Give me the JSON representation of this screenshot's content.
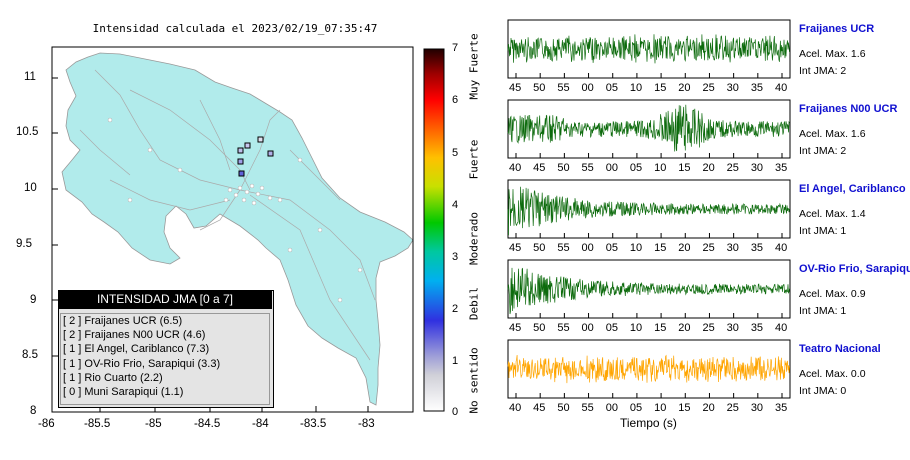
{
  "map": {
    "title": "Intensidad calculada el 2023/02/19_07:35:47",
    "y_ticks": [
      "11",
      "10.5",
      "10",
      "9.5",
      "9",
      "8.5",
      "8"
    ],
    "x_ticks": [
      "-86",
      "-85.5",
      "-85",
      "-84.5",
      "-84",
      "-83.5",
      "-83"
    ],
    "land_color": "#b1ebeb",
    "sea_color": "#ffffff"
  },
  "colorbar": {
    "labels": [
      "7",
      "6",
      "5",
      "4",
      "3",
      "2",
      "1",
      "0"
    ],
    "descriptions": [
      "Muy Fuerte",
      "Fuerte",
      "Moderado",
      "Debil",
      "No sentido"
    ]
  },
  "legend": {
    "title": "INTENSIDAD JMA [0 a 7]",
    "items": [
      "[ 2 ]  Fraijanes UCR (6.5)",
      "[ 2 ]  Fraijanes N00 UCR (4.6)",
      "[ 1 ]  El Angel, Cariblanco (7.3)",
      "[ 1 ]  OV-Rio Frio, Sarapiqui (3.3)",
      "[ 1 ]  Rio Cuarto (2.2)",
      "[ 0 ]  Muni Sarapiqui (1.1)"
    ]
  },
  "waveforms": [
    {
      "name": "Fraijanes UCR",
      "acel": "Acel. Max. 1.6",
      "int": "Int JMA: 2",
      "color": "#0d6b0d",
      "ticks": [
        "45",
        "50",
        "55",
        "00",
        "05",
        "10",
        "15",
        "20",
        "25",
        "30",
        "35",
        "40"
      ],
      "shape": "steady"
    },
    {
      "name": "Fraijanes N00 UCR",
      "acel": "Acel. Max. 1.6",
      "int": "Int JMA: 2",
      "color": "#0d6b0d",
      "ticks": [
        "40",
        "45",
        "50",
        "55",
        "00",
        "05",
        "10",
        "15",
        "20",
        "25",
        "30",
        "35"
      ],
      "shape": "burst"
    },
    {
      "name": "El Angel, Cariblanco",
      "acel": "Acel. Max. 1.4",
      "int": "Int JMA: 1",
      "color": "#0d6b0d",
      "ticks": [
        "45",
        "50",
        "55",
        "00",
        "05",
        "10",
        "15",
        "20",
        "25",
        "30",
        "35",
        "40"
      ],
      "shape": "decay"
    },
    {
      "name": "OV-Rio Frio, Sarapiqui",
      "acel": "Acel. Max. 0.9",
      "int": "Int JMA: 1",
      "color": "#0d6b0d",
      "ticks": [
        "45",
        "50",
        "55",
        "00",
        "05",
        "10",
        "15",
        "20",
        "25",
        "30",
        "35",
        "40"
      ],
      "shape": "decay"
    },
    {
      "name": "Teatro Nacional",
      "acel": "Acel. Max. 0.0",
      "int": "Int JMA: 0",
      "color": "#ffa500",
      "ticks": [
        "40",
        "45",
        "50",
        "55",
        "00",
        "05",
        "10",
        "15",
        "20",
        "25",
        "30",
        "35"
      ],
      "shape": "steady"
    }
  ],
  "x_axis_label": "Tiempo (s)"
}
